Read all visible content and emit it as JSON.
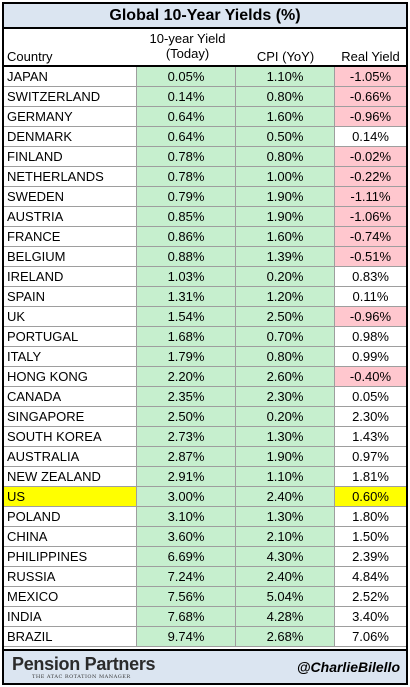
{
  "title": "Global 10-Year Yields (%)",
  "header": {
    "country": "Country",
    "yield_line1": "10-year Yield",
    "yield_line2": "(Today)",
    "cpi": "CPI (YoY)",
    "real": "Real Yield"
  },
  "rows": [
    {
      "country": "JAPAN",
      "yield": "0.05%",
      "cpi": "1.10%",
      "real": "-1.05%",
      "status": "negative"
    },
    {
      "country": "SWITZERLAND",
      "yield": "0.14%",
      "cpi": "0.80%",
      "real": "-0.66%",
      "status": "negative"
    },
    {
      "country": "GERMANY",
      "yield": "0.64%",
      "cpi": "1.60%",
      "real": "-0.96%",
      "status": "negative"
    },
    {
      "country": "DENMARK",
      "yield": "0.64%",
      "cpi": "0.50%",
      "real": "0.14%",
      "status": "positive"
    },
    {
      "country": "FINLAND",
      "yield": "0.78%",
      "cpi": "0.80%",
      "real": "-0.02%",
      "status": "negative"
    },
    {
      "country": "NETHERLANDS",
      "yield": "0.78%",
      "cpi": "1.00%",
      "real": "-0.22%",
      "status": "negative"
    },
    {
      "country": "SWEDEN",
      "yield": "0.79%",
      "cpi": "1.90%",
      "real": "-1.11%",
      "status": "negative"
    },
    {
      "country": "AUSTRIA",
      "yield": "0.85%",
      "cpi": "1.90%",
      "real": "-1.06%",
      "status": "negative"
    },
    {
      "country": "FRANCE",
      "yield": "0.86%",
      "cpi": "1.60%",
      "real": "-0.74%",
      "status": "negative"
    },
    {
      "country": "BELGIUM",
      "yield": "0.88%",
      "cpi": "1.39%",
      "real": "-0.51%",
      "status": "negative"
    },
    {
      "country": "IRELAND",
      "yield": "1.03%",
      "cpi": "0.20%",
      "real": "0.83%",
      "status": "positive"
    },
    {
      "country": "SPAIN",
      "yield": "1.31%",
      "cpi": "1.20%",
      "real": "0.11%",
      "status": "positive"
    },
    {
      "country": "UK",
      "yield": "1.54%",
      "cpi": "2.50%",
      "real": "-0.96%",
      "status": "negative"
    },
    {
      "country": "PORTUGAL",
      "yield": "1.68%",
      "cpi": "0.70%",
      "real": "0.98%",
      "status": "positive"
    },
    {
      "country": "ITALY",
      "yield": "1.79%",
      "cpi": "0.80%",
      "real": "0.99%",
      "status": "positive"
    },
    {
      "country": "HONG KONG",
      "yield": "2.20%",
      "cpi": "2.60%",
      "real": "-0.40%",
      "status": "negative"
    },
    {
      "country": "CANADA",
      "yield": "2.35%",
      "cpi": "2.30%",
      "real": "0.05%",
      "status": "positive"
    },
    {
      "country": "SINGAPORE",
      "yield": "2.50%",
      "cpi": "0.20%",
      "real": "2.30%",
      "status": "positive"
    },
    {
      "country": "SOUTH KOREA",
      "yield": "2.73%",
      "cpi": "1.30%",
      "real": "1.43%",
      "status": "positive"
    },
    {
      "country": "AUSTRALIA",
      "yield": "2.87%",
      "cpi": "1.90%",
      "real": "0.97%",
      "status": "positive"
    },
    {
      "country": "NEW ZEALAND",
      "yield": "2.91%",
      "cpi": "1.10%",
      "real": "1.81%",
      "status": "positive"
    },
    {
      "country": "US",
      "yield": "3.00%",
      "cpi": "2.40%",
      "real": "0.60%",
      "status": "highlight"
    },
    {
      "country": "POLAND",
      "yield": "3.10%",
      "cpi": "1.30%",
      "real": "1.80%",
      "status": "positive"
    },
    {
      "country": "CHINA",
      "yield": "3.60%",
      "cpi": "2.10%",
      "real": "1.50%",
      "status": "positive"
    },
    {
      "country": "PHILIPPINES",
      "yield": "6.69%",
      "cpi": "4.30%",
      "real": "2.39%",
      "status": "positive"
    },
    {
      "country": "RUSSIA",
      "yield": "7.24%",
      "cpi": "2.40%",
      "real": "4.84%",
      "status": "positive"
    },
    {
      "country": "MEXICO",
      "yield": "7.56%",
      "cpi": "5.04%",
      "real": "2.52%",
      "status": "positive"
    },
    {
      "country": "INDIA",
      "yield": "7.68%",
      "cpi": "4.28%",
      "real": "3.40%",
      "status": "positive"
    },
    {
      "country": "BRAZIL",
      "yield": "9.74%",
      "cpi": "2.68%",
      "real": "7.06%",
      "status": "positive"
    }
  ],
  "footer": {
    "logo_text": "Pension Partners",
    "logo_subtitle": "THE ATAC ROTATION MANAGER",
    "handle": "@CharlieBilello"
  },
  "colors": {
    "title_bg": "#dbe5f1",
    "green_fill": "#c6efce",
    "red_fill": "#ffc7ce",
    "highlight": "#ffff00"
  }
}
